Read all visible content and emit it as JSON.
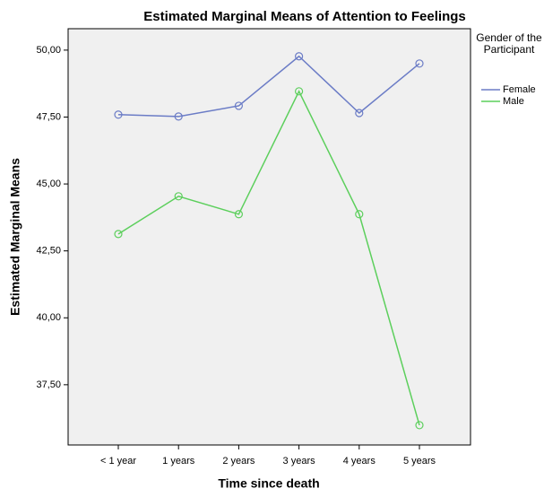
{
  "chart_data": {
    "type": "line",
    "title": "Estimated Marginal Means of Attention to Feelings",
    "x_label": "Time since death",
    "y_label": "Estimated Marginal Means",
    "legend_title": "Gender of the Participant",
    "legend": "right",
    "categories": [
      "< 1 year",
      "1 years",
      "2 years",
      "3 years",
      "4 years",
      "5 years"
    ],
    "series": [
      {
        "name": "Female",
        "color": "#6b7cc6",
        "values": [
          47.59,
          47.52,
          47.92,
          49.77,
          47.65,
          49.5
        ]
      },
      {
        "name": "Male",
        "color": "#5ccf5c",
        "values": [
          43.13,
          44.54,
          43.87,
          48.46,
          43.87,
          35.99
        ]
      }
    ],
    "ylim": [
      35.25,
      50.8
    ],
    "yticks": [
      {
        "value": 37.5,
        "label": "37,50"
      },
      {
        "value": 40,
        "label": "40,00"
      },
      {
        "value": 42.5,
        "label": "42,50"
      },
      {
        "value": 45,
        "label": "45,00"
      },
      {
        "value": 47.5,
        "label": "47,50"
      },
      {
        "value": 50,
        "label": "50,00"
      }
    ]
  }
}
